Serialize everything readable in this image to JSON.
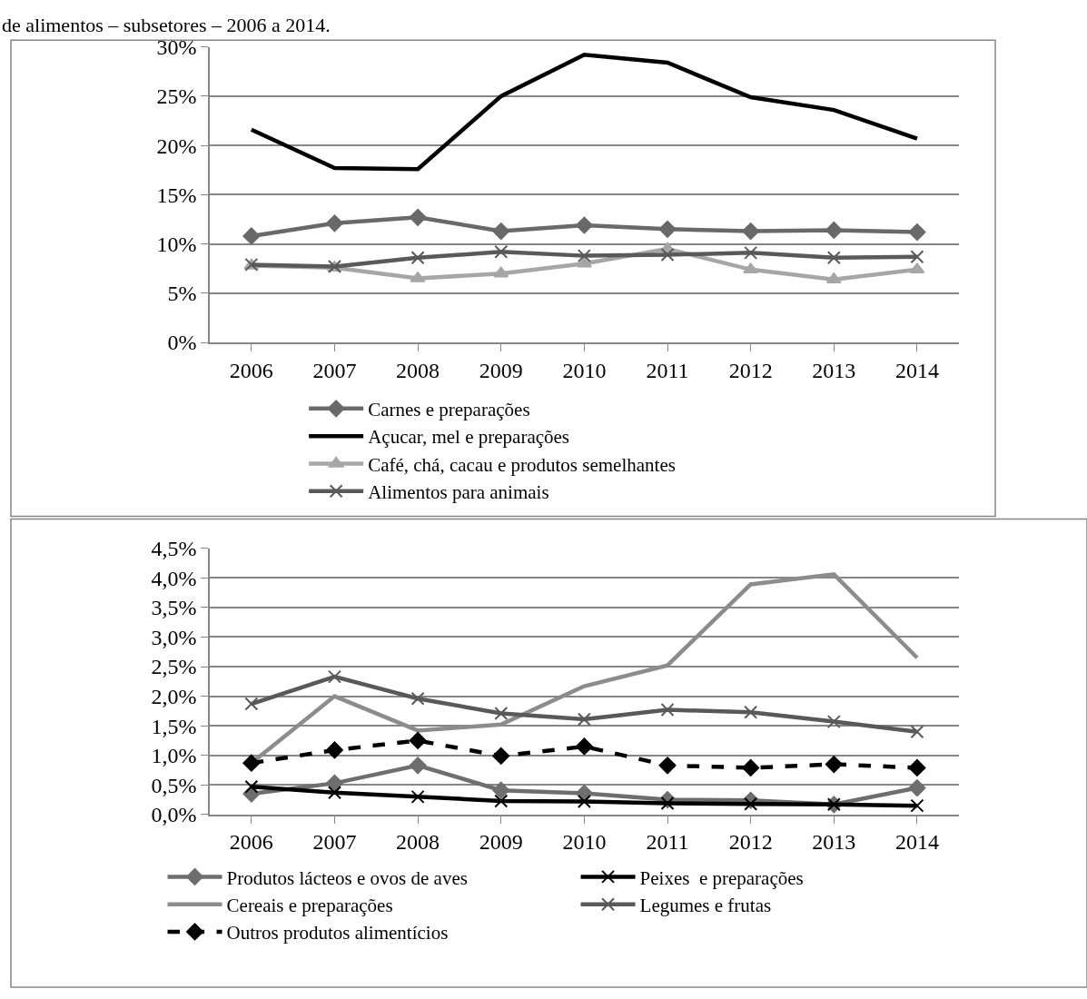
{
  "chart_data": [
    {
      "type": "line",
      "title": "de alimentos – subsetores – 2006 a 2014.",
      "categories": [
        "2006",
        "2007",
        "2008",
        "2009",
        "2010",
        "2011",
        "2012",
        "2013",
        "2014"
      ],
      "ylim": [
        0,
        30
      ],
      "yticks": [
        {
          "value": 0,
          "label": "0%"
        },
        {
          "value": 5,
          "label": "5%"
        },
        {
          "value": 10,
          "label": "10%"
        },
        {
          "value": 15,
          "label": "15%"
        },
        {
          "value": 20,
          "label": "20%"
        },
        {
          "value": 25,
          "label": "25%"
        },
        {
          "value": 30,
          "label": "30%"
        }
      ],
      "grid": "y",
      "legend": "bottom",
      "series": [
        {
          "name": "Carnes e preparações",
          "color": "#696969",
          "marker": "diamond",
          "values": [
            10.8,
            12.1,
            12.7,
            11.3,
            11.9,
            11.5,
            11.3,
            11.4,
            11.2
          ]
        },
        {
          "name": "Açucar, mel e preparações",
          "color": "#000000",
          "marker": "none",
          "values": [
            21.6,
            17.7,
            17.6,
            25.0,
            29.2,
            28.4,
            24.9,
            23.6,
            20.7
          ]
        },
        {
          "name": "Café, chá, cacau e produtos semelhantes",
          "color": "#a6a6a6",
          "marker": "triangle",
          "values": [
            7.8,
            7.6,
            6.5,
            7.0,
            8.0,
            9.5,
            7.4,
            6.4,
            7.4
          ]
        },
        {
          "name": "Alimentos para animais",
          "color": "#595959",
          "marker": "cross",
          "values": [
            7.9,
            7.7,
            8.6,
            9.2,
            8.8,
            8.9,
            9.1,
            8.6,
            8.7
          ]
        }
      ]
    },
    {
      "type": "line",
      "categories": [
        "2006",
        "2007",
        "2008",
        "2009",
        "2010",
        "2011",
        "2012",
        "2013",
        "2014"
      ],
      "ylim": [
        0,
        4.5
      ],
      "yticks": [
        {
          "value": 0,
          "label": "0,0%"
        },
        {
          "value": 0.5,
          "label": "0,5%"
        },
        {
          "value": 1,
          "label": "1,0%"
        },
        {
          "value": 1.5,
          "label": "1,5%"
        },
        {
          "value": 2,
          "label": "2,0%"
        },
        {
          "value": 2.5,
          "label": "2,5%"
        },
        {
          "value": 3,
          "label": "3,0%"
        },
        {
          "value": 3.5,
          "label": "3,5%"
        },
        {
          "value": 4,
          "label": "4,0%"
        },
        {
          "value": 4.5,
          "label": "4,5%"
        }
      ],
      "grid": "y",
      "legend": "bottom",
      "series": [
        {
          "name": "Produtos lácteos e ovos de aves",
          "color": "#6e6e6e",
          "marker": "diamond",
          "values": [
            0.35,
            0.53,
            0.83,
            0.41,
            0.36,
            0.25,
            0.24,
            0.17,
            0.45
          ]
        },
        {
          "name": "Peixes  e preparações",
          "color": "#000000",
          "marker": "cross",
          "values": [
            0.47,
            0.37,
            0.3,
            0.23,
            0.22,
            0.19,
            0.18,
            0.17,
            0.15
          ]
        },
        {
          "name": "Cereais e preparações",
          "color": "#8c8c8c",
          "marker": "none",
          "values": [
            0.87,
            2.0,
            1.42,
            1.52,
            2.17,
            2.52,
            3.89,
            4.06,
            2.65
          ]
        },
        {
          "name": "Legumes e frutas",
          "color": "#595959",
          "marker": "cross",
          "values": [
            1.87,
            2.33,
            1.96,
            1.71,
            1.61,
            1.77,
            1.73,
            1.57,
            1.4
          ]
        },
        {
          "name": "Outros produtos alimentícios",
          "color": "#000000",
          "marker": "diamond",
          "line_style": "dashed",
          "values": [
            0.87,
            1.09,
            1.25,
            0.99,
            1.15,
            0.83,
            0.79,
            0.85,
            0.79
          ]
        }
      ]
    }
  ]
}
